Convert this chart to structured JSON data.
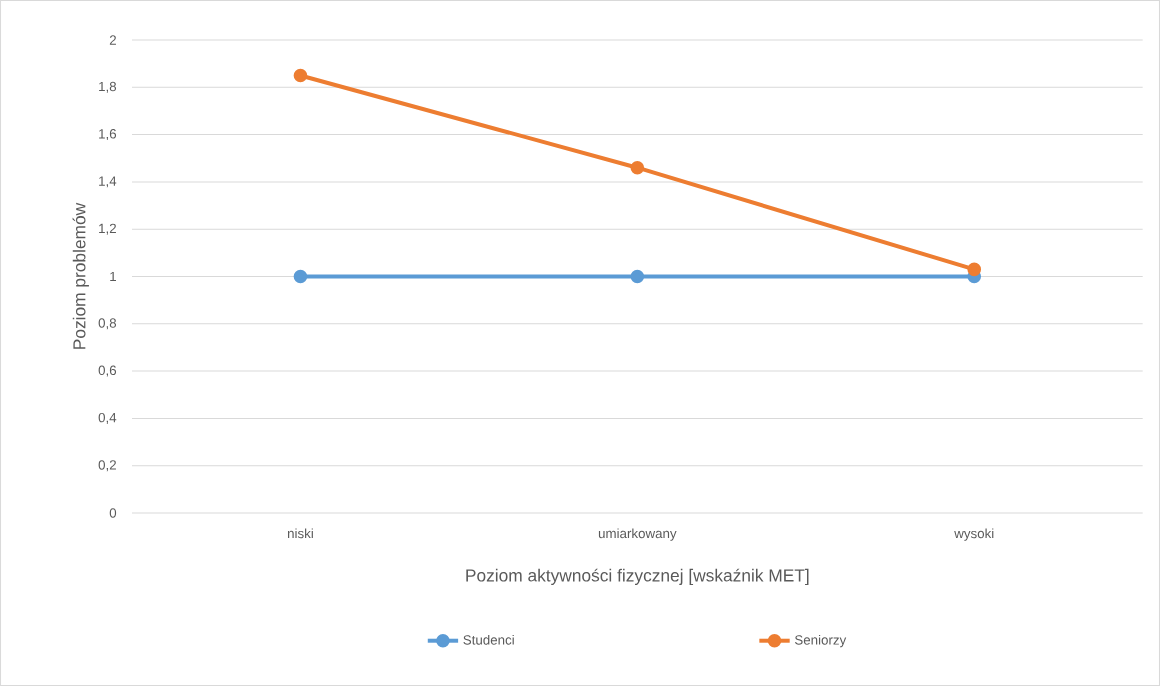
{
  "chart_data": {
    "type": "line",
    "xlabel": "Poziom aktywności fizycznej [wskaźnik MET]",
    "ylabel": "Poziom problemów",
    "categories": [
      "niski",
      "umiarkowany",
      "wysoki"
    ],
    "series": [
      {
        "name": "Studenci",
        "color": "#5b9bd5",
        "values": [
          1,
          1,
          1
        ]
      },
      {
        "name": "Seniorzy",
        "color": "#ed7d31",
        "values": [
          1.85,
          1.46,
          1.03
        ]
      }
    ],
    "ylim": [
      0,
      2
    ],
    "yticks": [
      0,
      {
        "value": 0.2,
        "label": "0,2"
      },
      {
        "value": 0.4,
        "label": "0,4"
      },
      {
        "value": 0.6,
        "label": "0,6"
      },
      {
        "value": 0.8,
        "label": "0,8"
      },
      1,
      {
        "value": 1.2,
        "label": "1,2"
      },
      {
        "value": 1.4,
        "label": "1,4"
      },
      {
        "value": 1.6,
        "label": "1,6"
      },
      {
        "value": 1.8,
        "label": "1,8"
      },
      2
    ],
    "grid": "y",
    "legend": "bottom",
    "marker": "circle",
    "line_style": "solid"
  }
}
